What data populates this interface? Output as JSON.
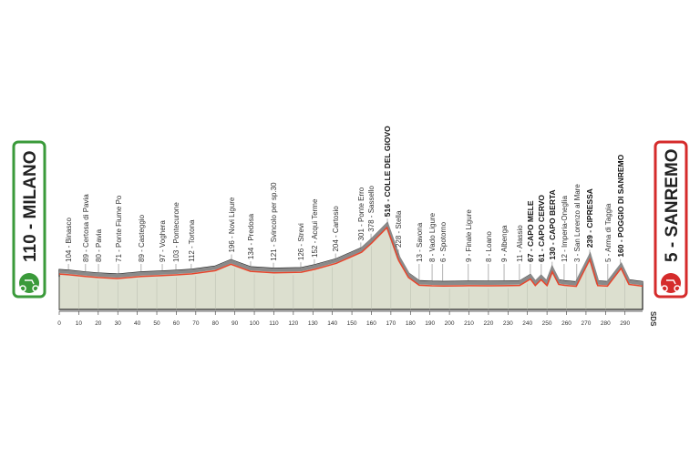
{
  "chart_data": {
    "type": "area",
    "start": "110 - MILANO",
    "finish": "5 - SANREMO",
    "credit": "SDS",
    "xlim": [
      0,
      299
    ],
    "xticks": [
      0,
      10,
      20,
      30,
      40,
      50,
      60,
      70,
      80,
      90,
      100,
      110,
      120,
      130,
      140,
      150,
      160,
      170,
      180,
      190,
      200,
      210,
      220,
      230,
      240,
      250,
      260,
      270,
      280,
      290
    ],
    "series": [
      {
        "color": "#e8452c",
        "fill": "#dcdfcf",
        "x": [
          0,
          5,
          13.5,
          20,
          30,
          42,
          53,
          60,
          68,
          80,
          88,
          98,
          110,
          124,
          131,
          142,
          155,
          160,
          168,
          174,
          179,
          184.5,
          191,
          197,
          210,
          220,
          228,
          236,
          241.5,
          244,
          247,
          250,
          252.7,
          256,
          259,
          265,
          272,
          276,
          281,
          288,
          292,
          299
        ],
        "values": [
          110,
          104,
          89,
          80,
          71,
          89,
          97,
          103,
          112,
          140,
          196,
          134,
          121,
          126,
          152,
          204,
          301,
          378,
          516,
          228,
          80,
          13,
          8,
          6,
          9,
          8,
          9,
          11,
          67,
          10,
          61,
          10,
          130,
          20,
          12,
          3,
          239,
          10,
          5,
          160,
          20,
          5
        ]
      }
    ],
    "annotations": [
      {
        "text": "104 - Binasco",
        "x": 4.7,
        "bold": false
      },
      {
        "text": "89 - Certosa di Pavia",
        "x": 13.5,
        "bold": false
      },
      {
        "text": "80 - Pavia",
        "x": 20.1,
        "bold": false
      },
      {
        "text": "71 - Ponte Fiume Po",
        "x": 30.4,
        "bold": false
      },
      {
        "text": "89 - Casteggio",
        "x": 42,
        "bold": false
      },
      {
        "text": "97 - Voghera",
        "x": 52.8,
        "bold": false
      },
      {
        "text": "103 - Pontecurone",
        "x": 59.8,
        "bold": false
      },
      {
        "text": "112 - Tortona",
        "x": 67.7,
        "bold": false
      },
      {
        "text": "196 - Novi Ligure",
        "x": 88.3,
        "bold": false
      },
      {
        "text": "134 - Predosa",
        "x": 98.1,
        "bold": false
      },
      {
        "text": "121 - Svincolo per sp.30",
        "x": 109.8,
        "bold": false
      },
      {
        "text": "126 - Strevi",
        "x": 123.8,
        "bold": false
      },
      {
        "text": "152 - Acqui Terme",
        "x": 130.8,
        "bold": false
      },
      {
        "text": "204 - Cartosio",
        "x": 141.6,
        "bold": false
      },
      {
        "text": "301 - Ponte Erro",
        "x": 154.6,
        "bold": false
      },
      {
        "text": "378 - Sassello",
        "x": 159.8,
        "bold": false
      },
      {
        "text": "516 - COLLE DEL GIOVO",
        "x": 168.2,
        "bold": true
      },
      {
        "text": "228 - Stella",
        "x": 173.8,
        "bold": false
      },
      {
        "text": "13 - Savona",
        "x": 184.5,
        "bold": false
      },
      {
        "text": "8 - Vado Ligure",
        "x": 191.1,
        "bold": false
      },
      {
        "text": "6 - Spotorno",
        "x": 196.6,
        "bold": false
      },
      {
        "text": "9 - Finale Ligure",
        "x": 209.7,
        "bold": false
      },
      {
        "text": "8 - Loano",
        "x": 220,
        "bold": false
      },
      {
        "text": "9 - Albenga",
        "x": 228,
        "bold": false
      },
      {
        "text": "11 - Alassio",
        "x": 235.9,
        "bold": false
      },
      {
        "text": "67 - CAPO MELE",
        "x": 241.5,
        "bold": true
      },
      {
        "text": "61 - CAPO CERVO",
        "x": 247.1,
        "bold": true
      },
      {
        "text": "130 - CAPO BERTA",
        "x": 252.7,
        "bold": true
      },
      {
        "text": "12 - Imperia-Oneglia",
        "x": 258.8,
        "bold": false
      },
      {
        "text": "3 - San Lorenzo al Mare",
        "x": 265.3,
        "bold": false
      },
      {
        "text": "239 - CIPRESSA",
        "x": 271.9,
        "bold": true
      },
      {
        "text": "5 - Arma di Taggia",
        "x": 281.2,
        "bold": false
      },
      {
        "text": "160 - POGGIO DI SANREMO",
        "x": 287.7,
        "bold": true
      }
    ]
  }
}
